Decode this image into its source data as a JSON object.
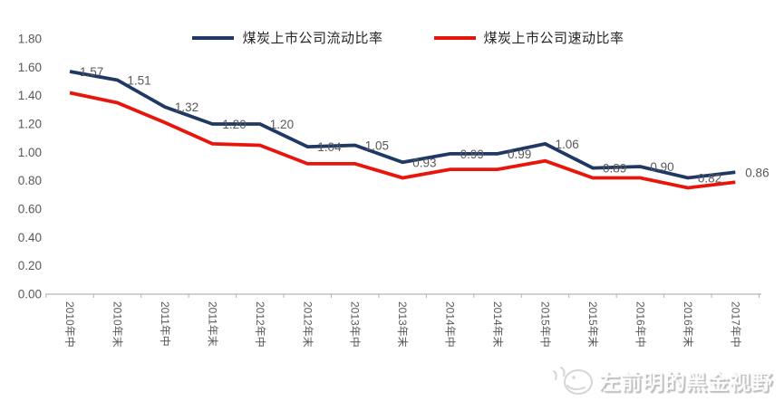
{
  "chart_data": {
    "type": "line",
    "title": "",
    "xlabel": "",
    "ylabel": "",
    "categories": [
      "2010年中",
      "2010年末",
      "2011年中",
      "2011年末",
      "2012年中",
      "2012年末",
      "2013年中",
      "2013年末",
      "2014年中",
      "2014年末",
      "2015年中",
      "2015年末",
      "2016年中",
      "2016年末",
      "2017年中"
    ],
    "series": [
      {
        "name": "煤炭上市公司流动比率",
        "color": "#1f3864",
        "data_labels": true,
        "values": [
          1.57,
          1.51,
          1.32,
          1.2,
          1.2,
          1.04,
          1.05,
          0.93,
          0.99,
          0.99,
          1.06,
          0.89,
          0.9,
          0.82,
          0.86
        ]
      },
      {
        "name": "煤炭上市公司速动比率",
        "color": "#e8150d",
        "data_labels": false,
        "values": [
          1.42,
          1.35,
          1.21,
          1.06,
          1.05,
          0.92,
          0.92,
          0.82,
          0.88,
          0.88,
          0.94,
          0.82,
          0.82,
          0.75,
          0.79
        ]
      }
    ],
    "ylim": [
      0.0,
      1.8
    ],
    "yticks": [
      0.0,
      0.2,
      0.4,
      0.6,
      0.8,
      1.0,
      1.2,
      1.4,
      1.6,
      1.8
    ],
    "grid": false,
    "legend_position": "top-center",
    "x_label_rotation": 90
  },
  "watermark": {
    "text": "左前明的黑金视野"
  },
  "colors": {
    "background": "#ffffff",
    "axis": "#b3b3b3",
    "tick_text": "#595959",
    "data_label_text": "#595959",
    "legend_text": "#262626",
    "watermark_gray": "#cfcfcf"
  }
}
